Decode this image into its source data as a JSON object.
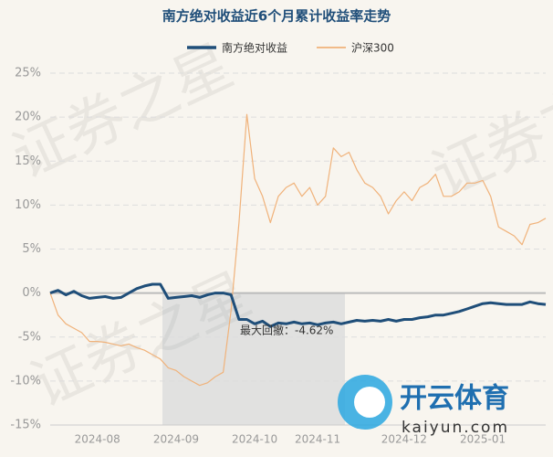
{
  "chart_data": {
    "type": "line",
    "title": "南方绝对收益近6个月累计收益率走势",
    "categories": [
      null,
      null,
      null,
      null,
      null,
      null,
      "2024-08",
      null,
      null,
      null,
      null,
      null,
      null,
      null,
      null,
      null,
      "2024-09",
      null,
      null,
      null,
      null,
      null,
      null,
      null,
      null,
      null,
      "2024-10",
      null,
      null,
      null,
      null,
      null,
      null,
      null,
      "2024-11",
      null,
      null,
      null,
      null,
      null,
      null,
      null,
      null,
      null,
      null,
      "2024-12",
      null,
      null,
      null,
      null,
      null,
      null,
      null,
      null,
      null,
      "2025-01",
      null,
      null,
      null,
      null,
      null,
      null,
      null,
      null
    ],
    "series": [
      {
        "name": "南方绝对收益",
        "color": "#1f4e79",
        "width": 3,
        "values": [
          0,
          0.3,
          -0.2,
          0.2,
          -0.3,
          -0.6,
          -0.5,
          -0.4,
          -0.6,
          -0.5,
          0,
          0.5,
          0.8,
          1,
          1,
          -0.6,
          -0.5,
          -0.4,
          -0.3,
          -0.5,
          -0.2,
          0,
          0,
          -0.2,
          -3,
          -3,
          -3.5,
          -3.2,
          -3.8,
          -3.4,
          -3.5,
          -3.3,
          -3.5,
          -3.4,
          -3.6,
          -3.4,
          -3.3,
          -3.5,
          -3.3,
          -3.1,
          -3.2,
          -3.1,
          -3.2,
          -3,
          -3.2,
          -3,
          -3,
          -2.8,
          -2.7,
          -2.5,
          -2.5,
          -2.3,
          -2.1,
          -1.8,
          -1.5,
          -1.2,
          -1.1,
          -1.2,
          -1.3,
          -1.3,
          -1.3,
          -1,
          -1.2,
          -1.3
        ]
      },
      {
        "name": "沪深300",
        "color": "#f0b27a",
        "width": 1.2,
        "values": [
          0,
          -2.5,
          -3.5,
          -4,
          -4.5,
          -5.5,
          -5.5,
          -5.6,
          -5.8,
          -6,
          -5.8,
          -6.2,
          -6.5,
          -7,
          -7.5,
          -8.5,
          -8.8,
          -9.5,
          -10,
          -10.5,
          -10.2,
          -9.5,
          -9,
          -2,
          8,
          20.3,
          13,
          11,
          8,
          11,
          12,
          12.5,
          11,
          12,
          10,
          11,
          16.5,
          15.5,
          16,
          14,
          12.5,
          12,
          11,
          9,
          10.5,
          11.5,
          10.5,
          12,
          12.5,
          13.5,
          11,
          11,
          11.5,
          12.5,
          12.5,
          12.8,
          11,
          7.5,
          7,
          6.5,
          5.5,
          7.8,
          8,
          8.5
        ]
      }
    ],
    "ylim": [
      -15,
      25
    ],
    "yticks": [
      {
        "value": -15,
        "label": "-15%"
      },
      {
        "value": -10,
        "label": "-10%"
      },
      {
        "value": -5,
        "label": "-5%"
      },
      {
        "value": 0,
        "label": "0%"
      },
      {
        "value": 5,
        "label": "5%"
      },
      {
        "value": 10,
        "label": "10%"
      },
      {
        "value": 15,
        "label": "15%"
      },
      {
        "value": 20,
        "label": "20%"
      },
      {
        "value": 25,
        "label": "25%"
      }
    ],
    "grid": true,
    "legend": "top",
    "annotation": "最大回撤：-4.62%",
    "watermark": "证券之星",
    "logo_text": "开云体育",
    "logo_url": "kaiyun.com"
  }
}
